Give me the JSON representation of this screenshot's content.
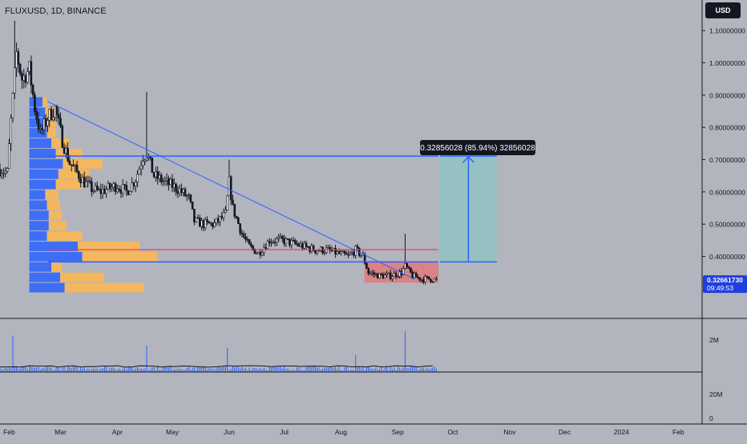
{
  "header": {
    "symbol": "FLUXUSD, 1D, BINANCE",
    "currency_button": "USD"
  },
  "price_badge": {
    "price": "0.32661730",
    "countdown": "09:49:53"
  },
  "measure_label": "0.32856028 (85.94%) 32856028",
  "colors": {
    "background": "#b2b5be",
    "candle": "#131722",
    "blue_line": "#2962ff",
    "red_line": "#f23645",
    "vp_blue": "#2962ff",
    "vp_yellow": "#ffb74d",
    "red_zone": "#e57373",
    "target_zone": "#80cbc4",
    "badge": "#1e3fe0"
  },
  "chart_data": {
    "type": "candlestick",
    "title": "FLUXUSD, 1D, BINANCE",
    "x_axis": {
      "start": "2023-01-27",
      "end": "2024-02-14",
      "tick_labels": [
        "Feb",
        "Mar",
        "Apr",
        "May",
        "Jun",
        "Jul",
        "Aug",
        "Sep",
        "Oct",
        "Nov",
        "Dec",
        "2024",
        "Feb"
      ]
    },
    "y_axis": {
      "ylim": [
        0.26,
        1.16
      ],
      "tick_labels": [
        "1.10000000",
        "1.00000000",
        "0.90000000",
        "0.80000000",
        "0.70000000",
        "0.60000000",
        "0.50000000",
        "0.40000000"
      ]
    },
    "current_price": 0.3266173,
    "price_path": [
      [
        "2023-01-27",
        0.67
      ],
      [
        "2023-01-31",
        0.66
      ],
      [
        "2023-02-02",
        0.82
      ],
      [
        "2023-02-05",
        1.03
      ],
      [
        "2023-02-08",
        0.95
      ],
      [
        "2023-02-12",
        0.98
      ],
      [
        "2023-02-15",
        0.86
      ],
      [
        "2023-02-18",
        0.78
      ],
      [
        "2023-02-22",
        0.83
      ],
      [
        "2023-02-26",
        0.86
      ],
      [
        "2023-03-02",
        0.76
      ],
      [
        "2023-03-06",
        0.69
      ],
      [
        "2023-03-10",
        0.66
      ],
      [
        "2023-03-14",
        0.63
      ],
      [
        "2023-03-18",
        0.61
      ],
      [
        "2023-03-22",
        0.6
      ],
      [
        "2023-03-27",
        0.61
      ],
      [
        "2023-04-01",
        0.62
      ],
      [
        "2023-04-06",
        0.6
      ],
      [
        "2023-04-11",
        0.64
      ],
      [
        "2023-04-15",
        0.71
      ],
      [
        "2023-04-17",
        0.72
      ],
      [
        "2023-04-21",
        0.65
      ],
      [
        "2023-04-27",
        0.63
      ],
      [
        "2023-05-04",
        0.61
      ],
      [
        "2023-05-10",
        0.58
      ],
      [
        "2023-05-13",
        0.51
      ],
      [
        "2023-05-18",
        0.5
      ],
      [
        "2023-05-24",
        0.5
      ],
      [
        "2023-05-30",
        0.53
      ],
      [
        "2023-06-01",
        0.63
      ],
      [
        "2023-06-03",
        0.55
      ],
      [
        "2023-06-08",
        0.47
      ],
      [
        "2023-06-12",
        0.43
      ],
      [
        "2023-06-17",
        0.41
      ],
      [
        "2023-06-23",
        0.45
      ],
      [
        "2023-06-30",
        0.45
      ],
      [
        "2023-07-06",
        0.44
      ],
      [
        "2023-07-12",
        0.43
      ],
      [
        "2023-07-18",
        0.42
      ],
      [
        "2023-07-24",
        0.42
      ],
      [
        "2023-07-30",
        0.41
      ],
      [
        "2023-08-05",
        0.4
      ],
      [
        "2023-08-09",
        0.42
      ],
      [
        "2023-08-13",
        0.4
      ],
      [
        "2023-08-16",
        0.35
      ],
      [
        "2023-08-22",
        0.34
      ],
      [
        "2023-08-28",
        0.34
      ],
      [
        "2023-09-03",
        0.35
      ],
      [
        "2023-09-05",
        0.37
      ],
      [
        "2023-09-09",
        0.34
      ],
      [
        "2023-09-14",
        0.33
      ],
      [
        "2023-09-19",
        0.33
      ],
      [
        "2023-09-22",
        0.327
      ]
    ],
    "volume": {
      "tick_labels": [
        "2M",
        "20M",
        "0"
      ],
      "spikes": [
        [
          "2023-02-03",
          0.75
        ],
        [
          "2023-04-17",
          0.55
        ],
        [
          "2023-05-31",
          0.5
        ],
        [
          "2023-08-09",
          0.35
        ],
        [
          "2023-09-05",
          0.85
        ]
      ]
    },
    "drawings": {
      "resistance_line": 0.711,
      "red_level": 0.421,
      "support_line": 0.383,
      "trend_line": {
        "from": [
          "2023-02-22",
          0.88
        ],
        "to": [
          "2023-09-10",
          0.33
        ]
      },
      "red_zone": {
        "from": "2023-08-14",
        "to": "2023-09-23",
        "low": 0.32,
        "high": 0.383
      },
      "target_zone": {
        "from": "2023-09-24",
        "to": "2023-10-25",
        "low": 0.383,
        "high": 0.711
      },
      "measure": {
        "change": 0.32856028,
        "percent": 85.94
      }
    },
    "volume_profile": [
      {
        "blue": 0.15,
        "yellow": 0.05
      },
      {
        "blue": 0.18,
        "yellow": 0.1
      },
      {
        "blue": 0.2,
        "yellow": 0.1
      },
      {
        "blue": 0.2,
        "yellow": 0.1
      },
      {
        "blue": 0.25,
        "yellow": 0.2
      },
      {
        "blue": 0.3,
        "yellow": 0.3
      },
      {
        "blue": 0.38,
        "yellow": 0.45
      },
      {
        "blue": 0.33,
        "yellow": 0.35
      },
      {
        "blue": 0.3,
        "yellow": 0.3
      },
      {
        "blue": 0.18,
        "yellow": 0.15
      },
      {
        "blue": 0.2,
        "yellow": 0.15
      },
      {
        "blue": 0.22,
        "yellow": 0.15
      },
      {
        "blue": 0.22,
        "yellow": 0.2
      },
      {
        "blue": 0.2,
        "yellow": 0.4
      },
      {
        "blue": 0.55,
        "yellow": 0.7
      },
      {
        "blue": 0.6,
        "yellow": 0.85
      },
      {
        "blue": 0.25,
        "yellow": 0.12
      },
      {
        "blue": 0.35,
        "yellow": 0.5
      },
      {
        "blue": 0.4,
        "yellow": 0.9
      }
    ]
  }
}
